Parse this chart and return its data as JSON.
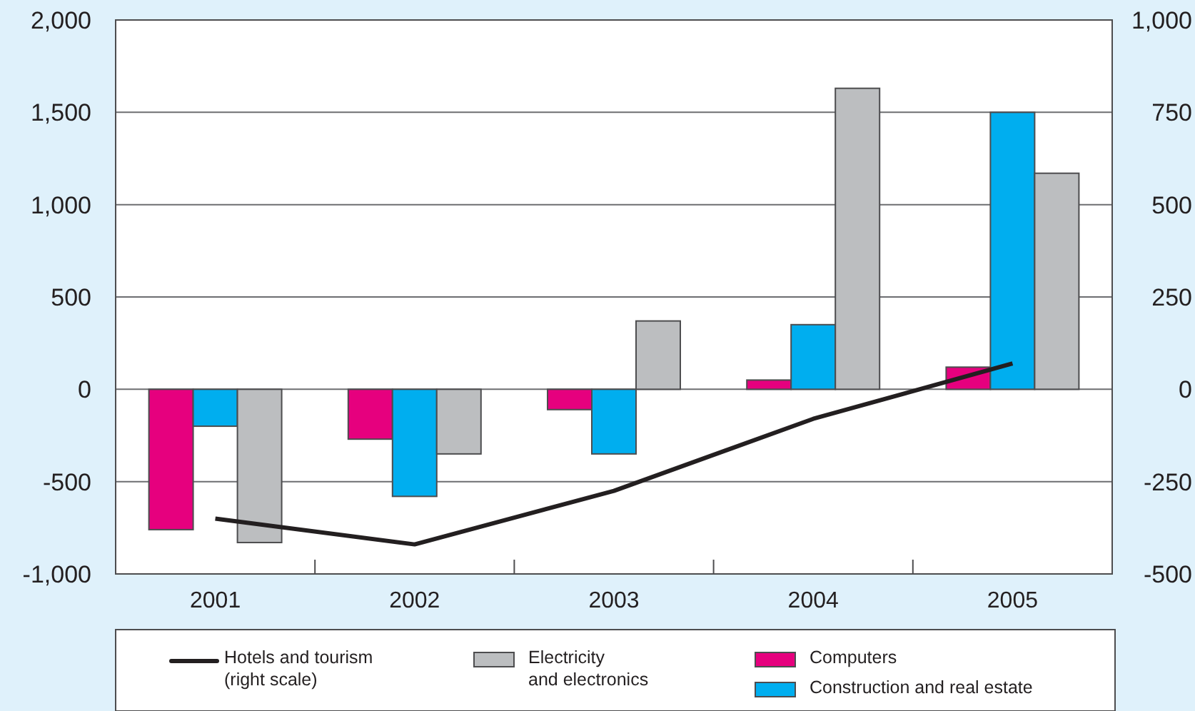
{
  "chart_data": {
    "type": "bar",
    "categories": [
      "2001",
      "2002",
      "2003",
      "2004",
      "2005"
    ],
    "series": [
      {
        "name": "Computers",
        "color": "#e6007e",
        "values": [
          -760,
          -270,
          -110,
          50,
          120
        ]
      },
      {
        "name": "Construction and real estate",
        "color": "#00aeef",
        "values": [
          -200,
          -580,
          -350,
          350,
          1500
        ]
      },
      {
        "name": "Electricity\nand electronics",
        "color": "#bcbec0",
        "values": [
          -830,
          -350,
          370,
          1630,
          1170
        ]
      },
      {
        "name": "Hotels and tourism\n(right scale)",
        "type": "line",
        "axis": "y2",
        "color": "#231f20",
        "values": [
          -350,
          -420,
          -275,
          -80,
          70
        ]
      }
    ],
    "ylim": [
      -1000,
      2000
    ],
    "yticks": [
      {
        "value": -1000,
        "label": "-1,000"
      },
      -500,
      0,
      500,
      {
        "value": 1000,
        "label": "1,000"
      },
      {
        "value": 1500,
        "label": "1,500"
      },
      {
        "value": 2000,
        "label": "2,000"
      }
    ],
    "y2lim": [
      -500,
      1000
    ],
    "y2ticks": [
      -500,
      -250,
      0,
      250,
      500,
      750,
      {
        "value": 1000,
        "label": "1,000"
      }
    ],
    "grid": "y",
    "legend": "bottom"
  }
}
